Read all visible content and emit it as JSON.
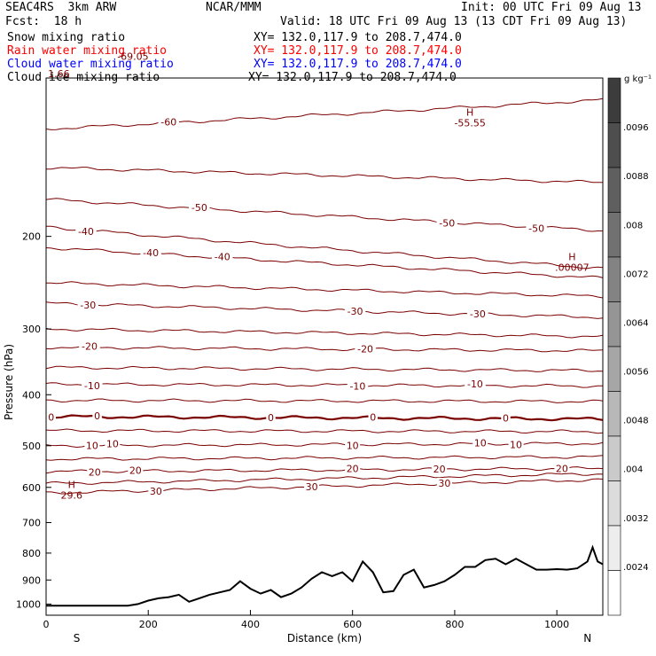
{
  "header": {
    "model": "SEAC4RS  3km ARW",
    "org": "NCAR/MMM",
    "init": "Init: 00 UTC Fri 09 Aug 13",
    "fcst": "Fcst:  18 h",
    "valid": "Valid: 18 UTC Fri 09 Aug 13 (13 CDT Fri 09 Aug 13)"
  },
  "fields": [
    {
      "name": "Snow mixing ratio",
      "xy": "XY= 132.0,117.9 to 208.7,474.0",
      "color": "#000000"
    },
    {
      "name": "Rain water mixing ratio",
      "xy": "XY= 132.0,117.9 to 208.7,474.0",
      "color": "#ff0000"
    },
    {
      "name": "Cloud water mixing ratio",
      "xy": "XY= 132.0,117.9 to 208.7,474.0",
      "color": "#0000ff"
    },
    {
      "name": "Cloud ice mixing ratio",
      "xy": "XY= 132.0,117.9 to 208.7,474.0",
      "color": "#000000"
    }
  ],
  "chart_data": {
    "type": "cross-section contour",
    "xlabel": "Distance (km)",
    "ylabel": "Pressure (hPa)",
    "xlim": [
      0,
      1090
    ],
    "ylim": [
      1050,
      100
    ],
    "x_ticks": [
      0,
      200,
      400,
      600,
      800,
      1000
    ],
    "y_ticks": [
      200,
      300,
      400,
      500,
      600,
      700,
      800,
      900,
      1000
    ],
    "x_end_labels": {
      "left": "S",
      "right": "N"
    },
    "contour_color": "#7a0000",
    "contour_levels": [
      -60,
      -50,
      -40,
      -30,
      -20,
      -10,
      0,
      10,
      20,
      30
    ],
    "isotherms": [
      {
        "p_left": 125,
        "p_right": 110,
        "labels": [
          {
            "x": 240,
            "text": "-60"
          }
        ]
      },
      {
        "p_left": 148,
        "p_right": 158,
        "labels": []
      },
      {
        "p_left": 170,
        "p_right": 195,
        "labels": [
          {
            "x": 300,
            "text": "-50"
          },
          {
            "x": 785,
            "text": "-50"
          },
          {
            "x": 960,
            "text": "-50"
          }
        ]
      },
      {
        "p_left": 192,
        "p_right": 230,
        "labels": [
          {
            "x": 78,
            "text": "-40"
          }
        ]
      },
      {
        "p_left": 210,
        "p_right": 240,
        "labels": [
          {
            "x": 205,
            "text": "-40"
          },
          {
            "x": 345,
            "text": "-40"
          }
        ]
      },
      {
        "p_left": 245,
        "p_right": 260,
        "labels": []
      },
      {
        "p_left": 268,
        "p_right": 285,
        "labels": [
          {
            "x": 82,
            "text": "-30"
          },
          {
            "x": 605,
            "text": "-30"
          },
          {
            "x": 845,
            "text": "-30"
          }
        ]
      },
      {
        "p_left": 300,
        "p_right": 310,
        "labels": []
      },
      {
        "p_left": 325,
        "p_right": 330,
        "labels": [
          {
            "x": 85,
            "text": "-20"
          },
          {
            "x": 625,
            "text": "-20"
          }
        ]
      },
      {
        "p_left": 355,
        "p_right": 360,
        "labels": []
      },
      {
        "p_left": 382,
        "p_right": 385,
        "labels": [
          {
            "x": 90,
            "text": "-10"
          },
          {
            "x": 610,
            "text": "-10"
          },
          {
            "x": 840,
            "text": "-10"
          }
        ]
      },
      {
        "p_left": 410,
        "p_right": 412,
        "labels": []
      },
      {
        "p_left": 440,
        "p_right": 445,
        "labels": [
          {
            "x": 10,
            "text": "0"
          },
          {
            "x": 100,
            "text": "0"
          },
          {
            "x": 440,
            "text": "0"
          },
          {
            "x": 640,
            "text": "0"
          },
          {
            "x": 900,
            "text": "0"
          }
        ],
        "bold": true
      },
      {
        "p_left": 468,
        "p_right": 470,
        "labels": []
      },
      {
        "p_left": 500,
        "p_right": 495,
        "labels": [
          {
            "x": 90,
            "text": "10"
          },
          {
            "x": 130,
            "text": "10"
          },
          {
            "x": 600,
            "text": "10"
          },
          {
            "x": 850,
            "text": "10"
          },
          {
            "x": 920,
            "text": "10"
          }
        ]
      },
      {
        "p_left": 530,
        "p_right": 525,
        "labels": []
      },
      {
        "p_left": 560,
        "p_right": 552,
        "labels": [
          {
            "x": 95,
            "text": "20"
          },
          {
            "x": 175,
            "text": "20"
          },
          {
            "x": 600,
            "text": "20"
          },
          {
            "x": 770,
            "text": "20"
          },
          {
            "x": 1010,
            "text": "20"
          }
        ]
      },
      {
        "p_left": 590,
        "p_right": 565,
        "labels": []
      },
      {
        "p_left": 615,
        "p_right": 580,
        "labels": [
          {
            "x": 215,
            "text": "30"
          },
          {
            "x": 520,
            "text": "30"
          },
          {
            "x": 780,
            "text": "30"
          }
        ]
      }
    ],
    "extrema": [
      {
        "kind": "H",
        "value": "-55.55",
        "x": 830,
        "p": 118
      },
      {
        "kind": "H",
        "value": ".00007",
        "x": 1030,
        "p": 222
      },
      {
        "kind": "H",
        "value": "29.6",
        "x": 50,
        "p": 602
      },
      {
        "kind": "",
        "value": "-69.05",
        "x": 170,
        "p": 91
      },
      {
        "kind": "",
        "value": "1.66",
        "x": 25,
        "p": 98
      }
    ],
    "terrain": {
      "x": [
        0,
        20,
        40,
        60,
        80,
        100,
        120,
        140,
        160,
        180,
        200,
        220,
        240,
        260,
        280,
        300,
        320,
        340,
        360,
        380,
        400,
        420,
        440,
        460,
        480,
        500,
        520,
        540,
        560,
        580,
        600,
        620,
        640,
        660,
        680,
        700,
        720,
        740,
        760,
        780,
        800,
        820,
        840,
        860,
        880,
        900,
        920,
        940,
        960,
        980,
        1000,
        1020,
        1040,
        1060,
        1070,
        1080,
        1090
      ],
      "p": [
        1007,
        1007,
        1007,
        1007,
        1007,
        1007,
        1007,
        1007,
        1007,
        1000,
        985,
        975,
        970,
        960,
        990,
        975,
        960,
        950,
        940,
        905,
        935,
        955,
        940,
        970,
        955,
        930,
        895,
        870,
        885,
        870,
        905,
        830,
        870,
        950,
        945,
        880,
        860,
        930,
        920,
        905,
        880,
        850,
        850,
        825,
        820,
        840,
        820,
        840,
        860,
        860,
        858,
        860,
        855,
        830,
        780,
        830,
        840
      ]
    },
    "colorbar": {
      "unit": "g kg⁻¹",
      "labels": [
        ".0096",
        ".0088",
        ".008",
        ".0072",
        ".0064",
        ".0056",
        ".0048",
        ".004",
        ".0032",
        ".0024"
      ]
    }
  }
}
